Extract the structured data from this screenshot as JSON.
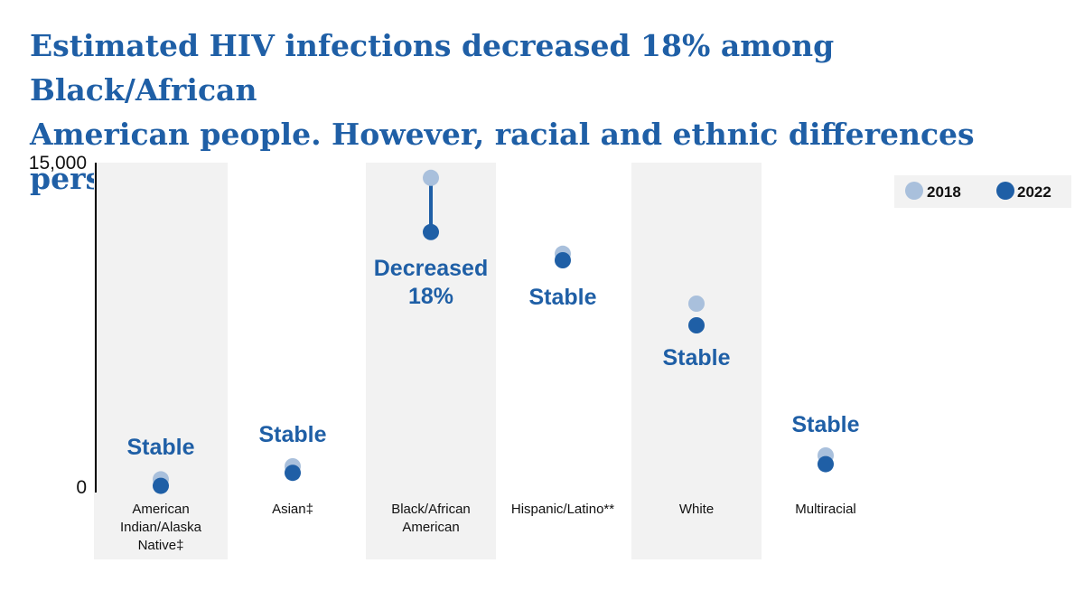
{
  "title": {
    "line1": "Estimated HIV infections decreased 18% among Black/African",
    "line2": "American people. However, racial and ethnic differences persist."
  },
  "colors": {
    "series_2018": "#a9c0dc",
    "series_2022": "#1f5fa6",
    "band": "#f2f2f2",
    "status_text": "#1f5fa6"
  },
  "chart_data": {
    "type": "dot",
    "title": "",
    "xlabel": "",
    "ylabel": "",
    "ylim": [
      0,
      15000
    ],
    "y_ticks": [
      "0",
      "15,000"
    ],
    "grid": false,
    "legend_position": "top-right",
    "categories": [
      [
        "American",
        "Indian/Alaska",
        "Native‡"
      ],
      [
        "Asian‡"
      ],
      [
        "Black/African",
        "American"
      ],
      [
        "Hispanic/Latino**"
      ],
      [
        "White"
      ],
      [
        "Multiracial"
      ]
    ],
    "series": [
      {
        "name": "2018",
        "values": [
          400,
          1000,
          14300,
          10800,
          8500,
          1500
        ]
      },
      {
        "name": "2022",
        "values": [
          100,
          700,
          11800,
          10500,
          7500,
          1100
        ]
      }
    ],
    "annotations": [
      [
        "Stable"
      ],
      [
        "Stable"
      ],
      [
        "Decreased",
        "18%"
      ],
      [
        "Stable"
      ],
      [
        "Stable"
      ],
      [
        "Stable"
      ]
    ]
  }
}
